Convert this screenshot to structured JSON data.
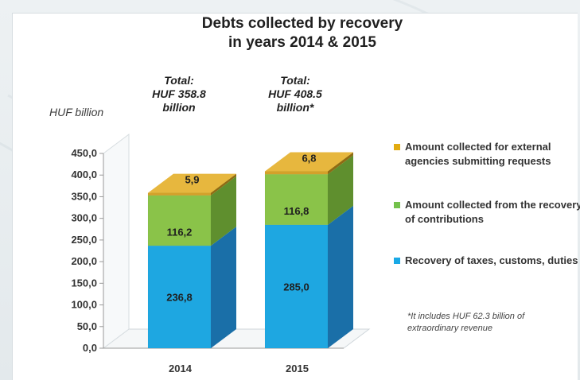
{
  "chart_data": {
    "type": "bar",
    "stacked": true,
    "three_d": true,
    "title_lines": [
      "Debts collected by recovery",
      "in years 2014 & 2015"
    ],
    "unit_label": "HUF billion",
    "categories": [
      "2014",
      "2015"
    ],
    "totals": [
      [
        "Total:",
        "HUF 358.8",
        "billion"
      ],
      [
        "Total:",
        "HUF 408.5",
        "billion*"
      ]
    ],
    "ylim": [
      0,
      450
    ],
    "yticks": [
      "0,0",
      "50,0",
      "100,0",
      "150,0",
      "200,0",
      "250,0",
      "300,0",
      "350,0",
      "400,0",
      "450,0"
    ],
    "series": [
      {
        "name": "Recovery of taxes, customs, duties",
        "values": [
          236.8,
          285.0
        ],
        "labels": [
          "236,8",
          "285,0"
        ],
        "color": "#1ea7e1",
        "side_color": "#1a6fa8",
        "top_color": "#58c1ef"
      },
      {
        "name": "Amount collected from the recovery of contributions",
        "values": [
          116.2,
          116.8
        ],
        "labels": [
          "116,2",
          "116,8"
        ],
        "color": "#8ac349",
        "side_color": "#5f8f2e",
        "top_color": "#9ad160"
      },
      {
        "name": "Amount collected for external agencies submitting requests",
        "values": [
          5.9,
          6.8
        ],
        "labels": [
          "5,9",
          "6,8"
        ],
        "color": "#d4a12a",
        "side_color": "#8f6a14",
        "top_color": "#e7b73e"
      }
    ],
    "legend_position": "right",
    "footnote": "*It includes HUF 62.3 billion of extraordinary revenue",
    "grid": false
  }
}
